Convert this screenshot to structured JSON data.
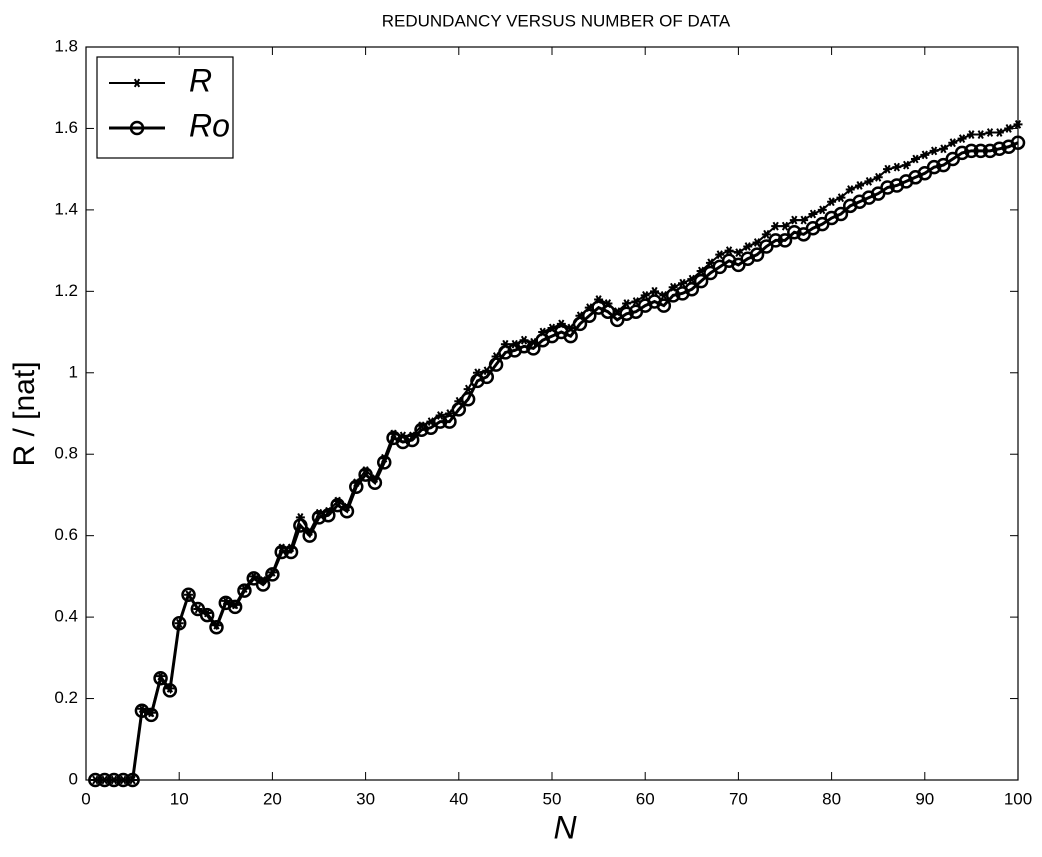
{
  "chart_data": {
    "type": "line",
    "title": "REDUNDANCY VERSUS NUMBER OF DATA",
    "x_label": "N",
    "y_label": "R / [nat]",
    "x": [
      1,
      2,
      3,
      4,
      5,
      6,
      7,
      8,
      9,
      10,
      11,
      12,
      13,
      14,
      15,
      16,
      17,
      18,
      19,
      20,
      21,
      22,
      23,
      24,
      25,
      26,
      27,
      28,
      29,
      30,
      31,
      32,
      33,
      34,
      35,
      36,
      37,
      38,
      39,
      40,
      41,
      42,
      43,
      44,
      45,
      46,
      47,
      48,
      49,
      50,
      51,
      52,
      53,
      54,
      55,
      56,
      57,
      58,
      59,
      60,
      61,
      62,
      63,
      64,
      65,
      66,
      67,
      68,
      69,
      70,
      71,
      72,
      73,
      74,
      75,
      76,
      77,
      78,
      79,
      80,
      81,
      82,
      83,
      84,
      85,
      86,
      87,
      88,
      89,
      90,
      91,
      92,
      93,
      94,
      95,
      96,
      97,
      98,
      99,
      100
    ],
    "series": [
      {
        "name": "R",
        "color": "#000000",
        "marker": "asterisk",
        "values": [
          0,
          0,
          0,
          0,
          0,
          0.175,
          0.165,
          0.255,
          0.225,
          0.385,
          0.455,
          0.42,
          0.41,
          0.38,
          0.44,
          0.43,
          0.47,
          0.5,
          0.49,
          0.51,
          0.57,
          0.57,
          0.645,
          0.61,
          0.655,
          0.66,
          0.685,
          0.67,
          0.73,
          0.76,
          0.74,
          0.79,
          0.85,
          0.845,
          0.845,
          0.87,
          0.88,
          0.895,
          0.9,
          0.93,
          0.96,
          1.0,
          1.005,
          1.04,
          1.07,
          1.07,
          1.08,
          1.075,
          1.1,
          1.11,
          1.12,
          1.11,
          1.14,
          1.16,
          1.18,
          1.17,
          1.15,
          1.17,
          1.175,
          1.19,
          1.2,
          1.19,
          1.21,
          1.22,
          1.23,
          1.25,
          1.27,
          1.29,
          1.3,
          1.295,
          1.31,
          1.32,
          1.34,
          1.36,
          1.36,
          1.375,
          1.375,
          1.39,
          1.4,
          1.42,
          1.43,
          1.45,
          1.46,
          1.47,
          1.48,
          1.5,
          1.505,
          1.51,
          1.525,
          1.535,
          1.545,
          1.55,
          1.565,
          1.575,
          1.585,
          1.585,
          1.59,
          1.59,
          1.6,
          1.61
        ]
      },
      {
        "name": "Ro",
        "color": "#000000",
        "marker": "circle",
        "values": [
          0,
          0,
          0,
          0,
          0,
          0.17,
          0.16,
          0.25,
          0.22,
          0.385,
          0.455,
          0.42,
          0.405,
          0.375,
          0.435,
          0.425,
          0.465,
          0.495,
          0.48,
          0.505,
          0.56,
          0.56,
          0.625,
          0.6,
          0.645,
          0.65,
          0.675,
          0.66,
          0.72,
          0.75,
          0.73,
          0.78,
          0.84,
          0.83,
          0.835,
          0.86,
          0.865,
          0.88,
          0.88,
          0.91,
          0.935,
          0.98,
          0.99,
          1.02,
          1.05,
          1.055,
          1.065,
          1.06,
          1.08,
          1.09,
          1.1,
          1.09,
          1.12,
          1.14,
          1.16,
          1.15,
          1.13,
          1.145,
          1.15,
          1.165,
          1.175,
          1.165,
          1.19,
          1.195,
          1.205,
          1.225,
          1.245,
          1.26,
          1.275,
          1.265,
          1.28,
          1.29,
          1.31,
          1.325,
          1.325,
          1.345,
          1.34,
          1.355,
          1.365,
          1.38,
          1.39,
          1.41,
          1.42,
          1.43,
          1.44,
          1.455,
          1.46,
          1.47,
          1.48,
          1.49,
          1.505,
          1.51,
          1.525,
          1.54,
          1.545,
          1.545,
          1.545,
          1.55,
          1.555,
          1.565
        ]
      }
    ],
    "xlim": [
      0,
      100
    ],
    "xticks": [
      0,
      10,
      20,
      30,
      40,
      50,
      60,
      70,
      80,
      90,
      100
    ],
    "ylim": [
      0,
      1.8
    ],
    "yticks": [
      0,
      0.2,
      0.4,
      0.6,
      0.8,
      1,
      1.2,
      1.4,
      1.6,
      1.8
    ],
    "grid": false,
    "legend": "upper left"
  }
}
